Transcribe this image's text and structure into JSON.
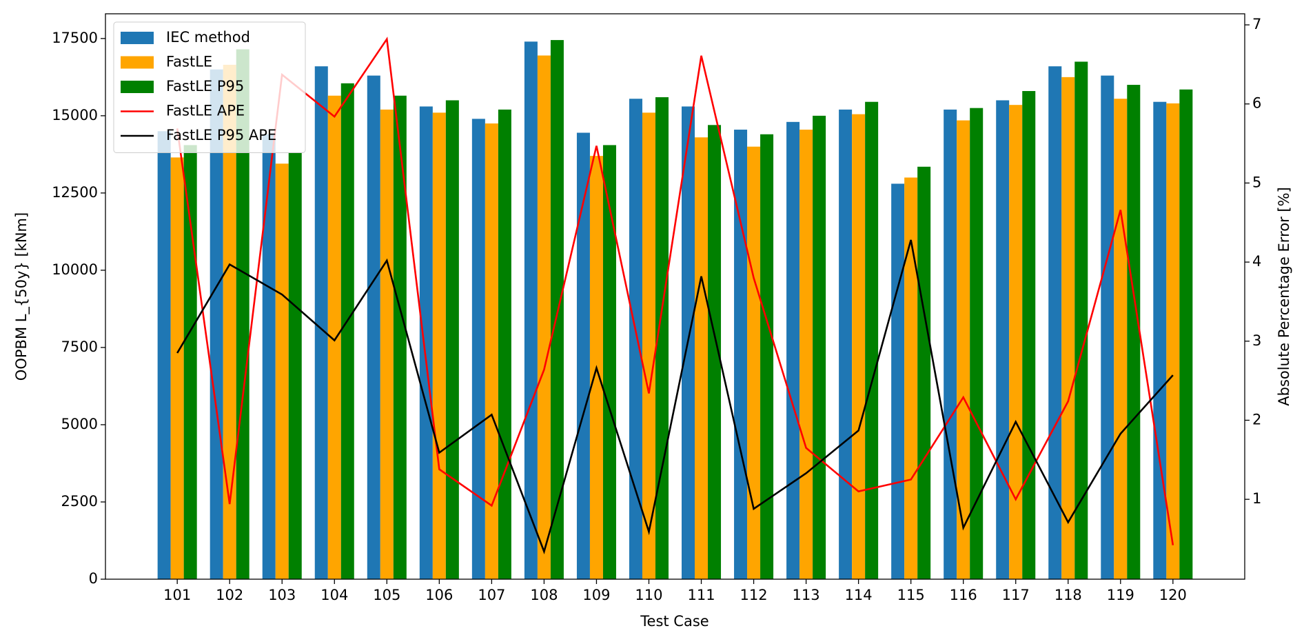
{
  "chart_data": {
    "type": "bar",
    "xlabel": "Test Case",
    "ylabel": "OOPBM L_{50y} [kNm]",
    "y2label": "Absolute Percentage Error [%]",
    "categories": [
      "101",
      "102",
      "103",
      "104",
      "105",
      "106",
      "107",
      "108",
      "109",
      "110",
      "111",
      "112",
      "113",
      "114",
      "115",
      "116",
      "117",
      "118",
      "119",
      "120"
    ],
    "series": [
      {
        "name": "IEC method",
        "type": "bar",
        "color": "#1f77b4",
        "values": [
          14500,
          16500,
          14400,
          16600,
          16300,
          15300,
          14900,
          17400,
          14450,
          15550,
          15300,
          14550,
          14800,
          15200,
          12800,
          15200,
          15500,
          16600,
          16300,
          15450
        ]
      },
      {
        "name": "FastLE",
        "type": "bar",
        "color": "#ffa500",
        "values": [
          13650,
          16650,
          13450,
          15650,
          15200,
          15100,
          14750,
          16950,
          13700,
          15100,
          14300,
          14000,
          14550,
          15050,
          13000,
          14850,
          15350,
          16250,
          15550,
          15400
        ]
      },
      {
        "name": "FastLE P95",
        "type": "bar",
        "color": "#008000",
        "values": [
          14050,
          17150,
          13800,
          16050,
          15650,
          15500,
          15200,
          17450,
          14050,
          15600,
          14700,
          14400,
          15000,
          15450,
          13350,
          15250,
          15800,
          16750,
          16000,
          15850
        ]
      },
      {
        "name": "FastLE APE",
        "type": "line",
        "axis": "y2",
        "color": "#ff0000",
        "values": [
          5.69,
          0.94,
          6.37,
          5.84,
          6.82,
          1.38,
          0.92,
          2.64,
          5.47,
          2.34,
          6.61,
          3.8,
          1.65,
          1.1,
          1.25,
          2.29,
          1.0,
          2.24,
          4.66,
          0.42
        ]
      },
      {
        "name": "FastLE P95 APE",
        "type": "line",
        "axis": "y2",
        "color": "#000000",
        "values": [
          2.85,
          3.97,
          3.59,
          3.01,
          4.02,
          1.59,
          2.07,
          0.34,
          2.66,
          0.59,
          3.82,
          0.88,
          1.33,
          1.87,
          4.28,
          0.64,
          1.98,
          0.71,
          1.83,
          2.57
        ]
      }
    ],
    "ylim": [
      0,
      18300
    ],
    "yticks": [
      0,
      2500,
      5000,
      7500,
      10000,
      12500,
      15000,
      17500
    ],
    "y2lim": [
      -0.01,
      7.14
    ],
    "y2ticks": [
      1,
      2,
      3,
      4,
      5,
      6,
      7
    ],
    "grid": false,
    "legend": "upper-left"
  }
}
